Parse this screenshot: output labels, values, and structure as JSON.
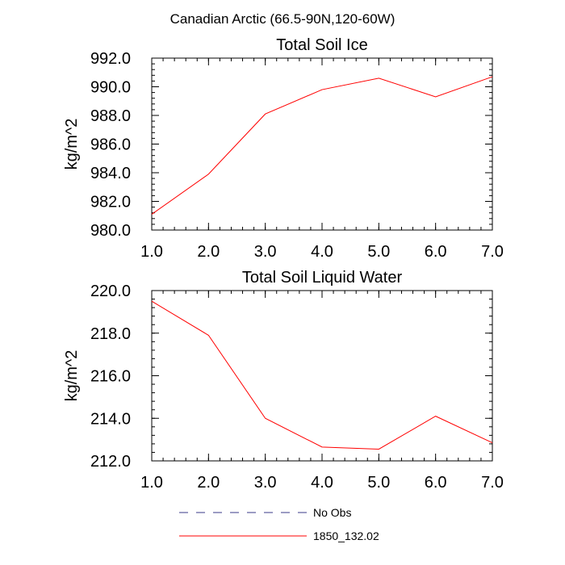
{
  "figure_title": "Canadian Arctic (66.5-90N,120-60W)",
  "chart_data": [
    {
      "type": "line",
      "title": "Total Soil Ice",
      "xlabel": "",
      "ylabel": "kg/m^2",
      "xlim": [
        1.0,
        7.0
      ],
      "ylim": [
        980.0,
        992.0
      ],
      "x_ticks": [
        "1.0",
        "2.0",
        "3.0",
        "4.0",
        "5.0",
        "6.0",
        "7.0"
      ],
      "y_ticks": [
        "980.0",
        "982.0",
        "984.0",
        "986.0",
        "988.0",
        "990.0",
        "992.0"
      ],
      "x": [
        1,
        2,
        3,
        4,
        5,
        6,
        7
      ],
      "series": [
        {
          "name": "1850_132.02",
          "color": "#ff0000",
          "style": "solid",
          "values": [
            981.1,
            983.9,
            988.1,
            989.8,
            990.6,
            989.3,
            990.7
          ]
        }
      ]
    },
    {
      "type": "line",
      "title": "Total Soil Liquid Water",
      "xlabel": "",
      "ylabel": "kg/m^2",
      "xlim": [
        1.0,
        7.0
      ],
      "ylim": [
        212.0,
        220.0
      ],
      "x_ticks": [
        "1.0",
        "2.0",
        "3.0",
        "4.0",
        "5.0",
        "6.0",
        "7.0"
      ],
      "y_ticks": [
        "212.0",
        "214.0",
        "216.0",
        "218.0",
        "220.0"
      ],
      "x": [
        1,
        2,
        3,
        4,
        5,
        6,
        7
      ],
      "series": [
        {
          "name": "1850_132.02",
          "color": "#ff0000",
          "style": "solid",
          "values": [
            219.5,
            217.9,
            214.0,
            212.65,
            212.55,
            214.1,
            212.85
          ]
        }
      ]
    }
  ],
  "legend": [
    {
      "label": "No Obs",
      "color": "#3a3a8a",
      "style": "dashed"
    },
    {
      "label": "1850_132.02",
      "color": "#ff0000",
      "style": "solid"
    }
  ]
}
